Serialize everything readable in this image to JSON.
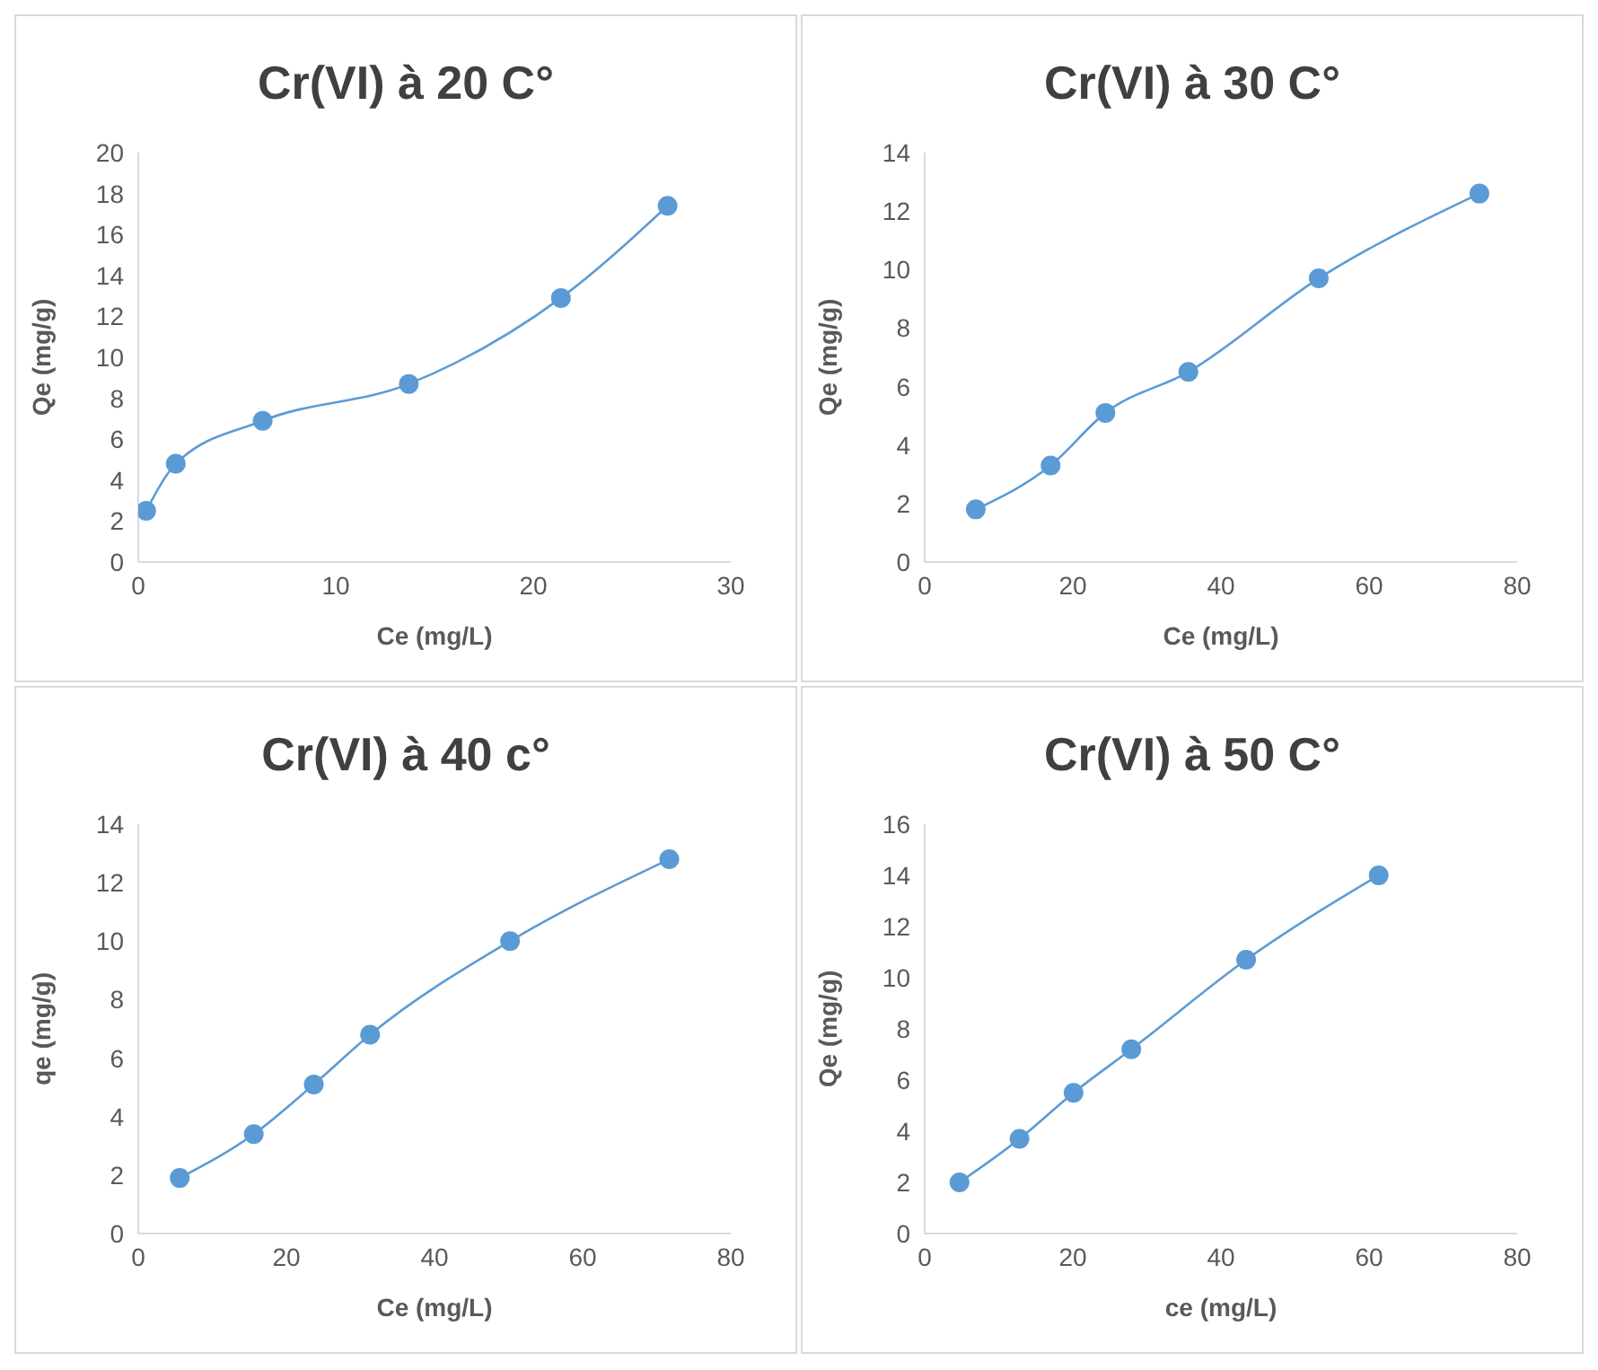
{
  "chart_data": [
    {
      "type": "line",
      "title": "Cr(VI) à 20 C°",
      "xlabel": "Ce (mg/L)",
      "ylabel": "Qe (mg/g)",
      "x": [
        0.4,
        1.9,
        6.3,
        13.7,
        21.4,
        26.8
      ],
      "series": [
        {
          "color": "#5b9bd5",
          "values": [
            2.5,
            4.8,
            6.9,
            8.7,
            12.9,
            17.4
          ]
        }
      ],
      "xlim": [
        0,
        30
      ],
      "xticks": [
        0,
        10,
        20,
        30
      ],
      "ylim": [
        0,
        20
      ],
      "yticks": [
        0,
        2,
        4,
        6,
        8,
        10,
        12,
        14,
        16,
        18,
        20
      ],
      "grid": false,
      "legend": false,
      "marker": "circle"
    },
    {
      "type": "line",
      "title": "Cr(VI) à 30 C°",
      "xlabel": "Ce (mg/L)",
      "ylabel": "Qe (mg/g)",
      "x": [
        6.9,
        17,
        24.4,
        35.6,
        53.2,
        74.9
      ],
      "series": [
        {
          "color": "#5b9bd5",
          "values": [
            1.8,
            3.3,
            5.1,
            6.5,
            9.7,
            12.6
          ]
        }
      ],
      "xlim": [
        0,
        80
      ],
      "xticks": [
        0,
        20,
        40,
        60,
        80
      ],
      "ylim": [
        0,
        14
      ],
      "yticks": [
        0,
        2,
        4,
        6,
        8,
        10,
        12,
        14
      ],
      "grid": false,
      "legend": false,
      "marker": "circle"
    },
    {
      "type": "line",
      "title": "Cr(VI) à 40 c°",
      "xlabel": "Ce (mg/L)",
      "ylabel": "qe (mg/g)",
      "x": [
        5.6,
        15.6,
        23.7,
        31.3,
        50.2,
        71.7
      ],
      "series": [
        {
          "color": "#5b9bd5",
          "values": [
            1.9,
            3.4,
            5.1,
            6.8,
            10.0,
            12.8
          ]
        }
      ],
      "xlim": [
        0,
        80
      ],
      "xticks": [
        0,
        20,
        40,
        60,
        80
      ],
      "ylim": [
        0,
        14
      ],
      "yticks": [
        0,
        2,
        4,
        6,
        8,
        10,
        12,
        14
      ],
      "grid": false,
      "legend": false,
      "marker": "circle"
    },
    {
      "type": "line",
      "title": "Cr(VI) à 50 C°",
      "xlabel": "ce (mg/L)",
      "ylabel": "Qe (mg/g)",
      "x": [
        4.7,
        12.8,
        20.1,
        27.9,
        43.4,
        61.3
      ],
      "series": [
        {
          "color": "#5b9bd5",
          "values": [
            2.0,
            3.7,
            5.5,
            7.2,
            10.7,
            14.0
          ]
        }
      ],
      "xlim": [
        0,
        80
      ],
      "xticks": [
        0,
        20,
        40,
        60,
        80
      ],
      "ylim": [
        0,
        16
      ],
      "yticks": [
        0,
        2,
        4,
        6,
        8,
        10,
        12,
        14,
        16
      ],
      "grid": false,
      "legend": false,
      "marker": "circle"
    }
  ]
}
